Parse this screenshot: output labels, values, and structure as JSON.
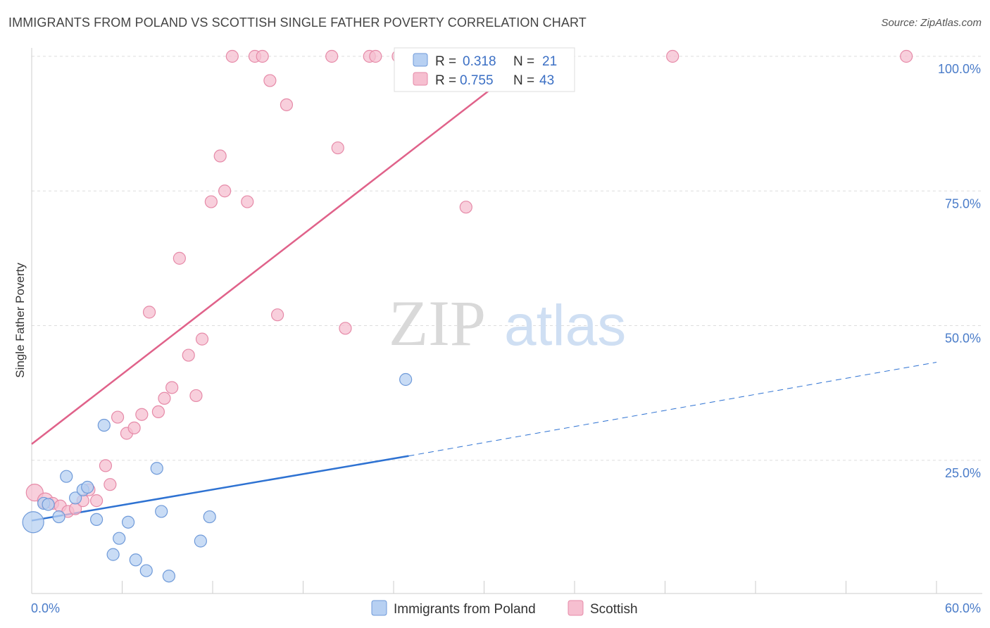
{
  "title": "IMMIGRANTS FROM POLAND VS SCOTTISH SINGLE FATHER POVERTY CORRELATION CHART",
  "source": "Source: ZipAtlas.com",
  "watermark": {
    "zip": "ZIP",
    "atlas": "atlas"
  },
  "colors": {
    "poland": "#2e72d2",
    "poland_fill": "#b7d0f2",
    "scottish": "#e0628a",
    "scottish_fill": "#f6bfd0",
    "tick": "#4a7cc9",
    "grid": "#dddddd"
  },
  "stats": {
    "r_label": "R =",
    "n_label": "N =",
    "poland": {
      "r": "0.318",
      "n": "21"
    },
    "scottish": {
      "r": "0.755",
      "n": "43"
    }
  },
  "legend": {
    "poland": "Immigrants from Poland",
    "scottish": "Scottish"
  },
  "chart_data": {
    "type": "scatter",
    "title": "IMMIGRANTS FROM POLAND VS SCOTTISH SINGLE FATHER POVERTY CORRELATION CHART",
    "xlabel": "",
    "ylabel": "Single Father Poverty",
    "xlim": [
      0,
      60
    ],
    "ylim": [
      0,
      100
    ],
    "x_tick_labels": [
      "0.0%",
      "60.0%"
    ],
    "y_tick_labels": [
      "25.0%",
      "50.0%",
      "75.0%",
      "100.0%"
    ],
    "y_ticks": [
      25,
      50,
      75,
      100
    ],
    "grid": true,
    "legend_position": "bottom",
    "series": [
      {
        "name": "Immigrants from Poland",
        "points": [
          [
            0.1,
            13.5
          ],
          [
            0.8,
            17.0
          ],
          [
            1.1,
            16.8
          ],
          [
            1.8,
            14.5
          ],
          [
            2.3,
            22.0
          ],
          [
            2.9,
            18.0
          ],
          [
            3.4,
            19.5
          ],
          [
            3.7,
            20.0
          ],
          [
            4.3,
            14.0
          ],
          [
            4.8,
            31.5
          ],
          [
            5.4,
            7.5
          ],
          [
            5.8,
            10.5
          ],
          [
            6.4,
            13.5
          ],
          [
            6.9,
            6.5
          ],
          [
            7.6,
            4.5
          ],
          [
            8.3,
            23.5
          ],
          [
            8.6,
            15.5
          ],
          [
            9.1,
            3.5
          ],
          [
            11.2,
            10.0
          ],
          [
            11.8,
            14.5
          ],
          [
            24.8,
            40.0
          ]
        ],
        "trend": {
          "x": [
            0,
            25
          ],
          "y": [
            13.8,
            25.8
          ],
          "dashed_to_x": 60,
          "dashed_to_y": 43.2
        }
      },
      {
        "name": "Scottish",
        "points": [
          [
            0.2,
            19.0
          ],
          [
            0.9,
            17.5
          ],
          [
            1.4,
            17.0
          ],
          [
            1.9,
            16.5
          ],
          [
            2.4,
            15.5
          ],
          [
            2.9,
            16.0
          ],
          [
            3.4,
            17.5
          ],
          [
            3.8,
            19.5
          ],
          [
            4.3,
            17.5
          ],
          [
            4.9,
            24.0
          ],
          [
            5.2,
            20.5
          ],
          [
            5.7,
            33.0
          ],
          [
            6.3,
            30.0
          ],
          [
            6.8,
            31.0
          ],
          [
            7.3,
            33.5
          ],
          [
            7.8,
            52.5
          ],
          [
            8.4,
            34.0
          ],
          [
            8.8,
            36.5
          ],
          [
            9.3,
            38.5
          ],
          [
            9.8,
            62.5
          ],
          [
            10.4,
            44.5
          ],
          [
            10.9,
            37.0
          ],
          [
            11.3,
            47.5
          ],
          [
            11.9,
            73.0
          ],
          [
            12.5,
            81.5
          ],
          [
            12.8,
            75.0
          ],
          [
            13.3,
            100.0
          ],
          [
            14.3,
            73.0
          ],
          [
            14.8,
            100.0
          ],
          [
            15.3,
            100.0
          ],
          [
            15.8,
            95.5
          ],
          [
            16.3,
            52.0
          ],
          [
            16.9,
            91.0
          ],
          [
            19.9,
            100.0
          ],
          [
            20.3,
            83.0
          ],
          [
            20.8,
            49.5
          ],
          [
            22.4,
            100.0
          ],
          [
            22.8,
            100.0
          ],
          [
            24.3,
            100.0
          ],
          [
            28.8,
            72.0
          ],
          [
            32.3,
            100.0
          ],
          [
            42.5,
            100.0
          ],
          [
            58.0,
            100.0
          ]
        ],
        "trend": {
          "x": [
            0,
            33.5
          ],
          "y": [
            28.0,
            100.5
          ]
        }
      }
    ]
  }
}
